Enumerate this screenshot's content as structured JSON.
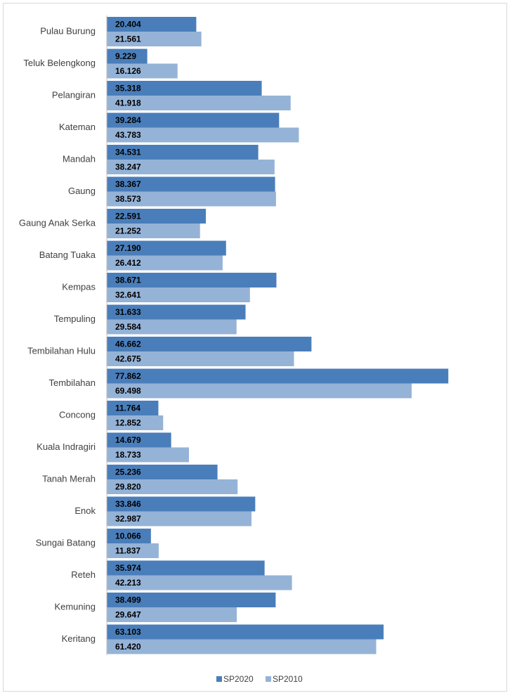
{
  "chart_data": {
    "type": "barh",
    "categories": [
      "Pulau Burung",
      "Teluk Belengkong",
      "Pelangiran",
      "Kateman",
      "Mandah",
      "Gaung",
      "Gaung Anak Serka",
      "Batang Tuaka",
      "Kempas",
      "Tempuling",
      "Tembilahan Hulu",
      "Tembilahan",
      "Concong",
      "Kuala Indragiri",
      "Tanah Merah",
      "Enok",
      "Sungai Batang",
      "Reteh",
      "Kemuning",
      "Keritang"
    ],
    "series": [
      {
        "name": "SP2020",
        "color": "#4a7ebb",
        "values": [
          20404,
          9229,
          35318,
          39284,
          34531,
          38367,
          22591,
          27190,
          38671,
          31633,
          46662,
          77862,
          11764,
          14679,
          25236,
          33846,
          10066,
          35974,
          38499,
          63103
        ],
        "value_labels": [
          "20.404",
          "9.229",
          "35.318",
          "39.284",
          "34.531",
          "38.367",
          "22.591",
          "27.190",
          "38.671",
          "31.633",
          "46.662",
          "77.862",
          "11.764",
          "14.679",
          "25.236",
          "33.846",
          "10.066",
          "35.974",
          "38.499",
          "63.103"
        ]
      },
      {
        "name": "SP2010",
        "color": "#95b3d7",
        "values": [
          21561,
          16126,
          41918,
          43783,
          38247,
          38573,
          21252,
          26412,
          32641,
          29584,
          42675,
          69498,
          12852,
          18733,
          29820,
          32987,
          11837,
          42213,
          29647,
          61420
        ],
        "value_labels": [
          "21.561",
          "16.126",
          "41.918",
          "43.783",
          "38.247",
          "38.573",
          "21.252",
          "26.412",
          "32.641",
          "29.584",
          "42.675",
          "69.498",
          "12.852",
          "18.733",
          "29.820",
          "32.987",
          "11.837",
          "42.213",
          "29.647",
          "61.420"
        ]
      }
    ],
    "xlim": [
      0,
      90000
    ],
    "legend": "bottom"
  }
}
